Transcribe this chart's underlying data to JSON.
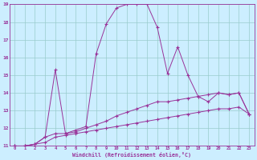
{
  "xlabel": "Windchill (Refroidissement éolien,°C)",
  "background_color": "#cceeff",
  "line_color": "#993399",
  "grid_color": "#99cccc",
  "xlim": [
    -0.5,
    23.5
  ],
  "ylim": [
    11,
    19
  ],
  "xticks": [
    0,
    1,
    2,
    3,
    4,
    5,
    6,
    7,
    8,
    9,
    10,
    11,
    12,
    13,
    14,
    15,
    16,
    17,
    18,
    19,
    20,
    21,
    22,
    23
  ],
  "yticks": [
    11,
    12,
    13,
    14,
    15,
    16,
    17,
    18,
    19
  ],
  "series": [
    [
      11.0,
      11.0,
      11.1,
      11.5,
      15.3,
      11.7,
      11.9,
      12.1,
      16.2,
      17.9,
      18.8,
      19.0,
      19.0,
      19.0,
      17.7,
      15.1,
      16.6,
      15.0,
      13.8,
      13.5,
      14.0,
      13.9,
      14.0,
      12.8
    ],
    [
      11.0,
      11.0,
      11.1,
      11.5,
      11.7,
      11.7,
      11.8,
      12.0,
      12.2,
      12.4,
      12.7,
      12.9,
      13.1,
      13.3,
      13.5,
      13.5,
      13.6,
      13.7,
      13.8,
      13.9,
      14.0,
      13.9,
      14.0,
      12.8
    ],
    [
      11.0,
      11.0,
      11.1,
      11.2,
      11.5,
      11.6,
      11.7,
      11.8,
      11.9,
      12.0,
      12.1,
      12.2,
      12.3,
      12.4,
      12.5,
      12.6,
      12.7,
      12.8,
      12.9,
      13.0,
      13.1,
      13.1,
      13.2,
      12.8
    ]
  ]
}
